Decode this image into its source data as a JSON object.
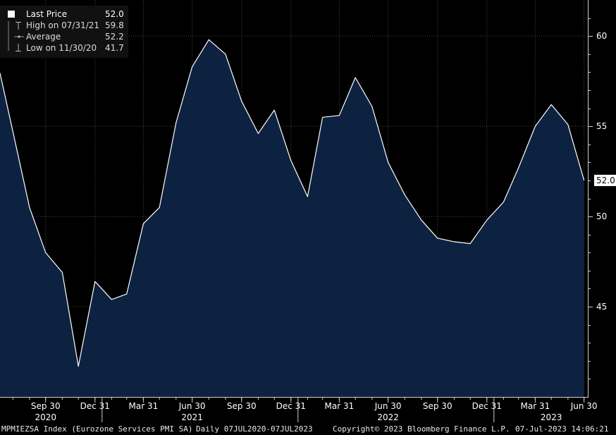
{
  "chart_data": {
    "type": "area",
    "title": "",
    "xlabel": "",
    "ylabel": "",
    "ylim": [
      40.0,
      62.0
    ],
    "y_ticks": [
      45,
      50,
      55,
      60
    ],
    "x": [
      "2020-07-31",
      "2020-08-31",
      "2020-09-30",
      "2020-10-31",
      "2020-11-30",
      "2020-12-31",
      "2021-01-31",
      "2021-02-28",
      "2021-03-31",
      "2021-04-30",
      "2021-05-31",
      "2021-06-30",
      "2021-07-31",
      "2021-08-31",
      "2021-09-30",
      "2021-10-31",
      "2021-11-30",
      "2021-12-31",
      "2022-01-31",
      "2022-02-28",
      "2022-03-31",
      "2022-04-30",
      "2022-05-31",
      "2022-06-30",
      "2022-07-31",
      "2022-08-31",
      "2022-09-30",
      "2022-10-31",
      "2022-11-30",
      "2022-12-31",
      "2023-01-31",
      "2023-02-28",
      "2023-03-31",
      "2023-04-30",
      "2023-05-31",
      "2023-06-30"
    ],
    "x_start": "2020-07-07",
    "x_end": "2023-07-07",
    "series": [
      {
        "name": "Last Price",
        "values": [
          54.7,
          50.5,
          48.0,
          46.9,
          41.7,
          46.4,
          45.4,
          45.7,
          49.6,
          50.5,
          55.2,
          58.3,
          59.8,
          59.0,
          56.4,
          54.6,
          55.9,
          53.1,
          51.1,
          55.5,
          55.6,
          57.7,
          56.1,
          53.0,
          51.2,
          49.8,
          48.8,
          48.6,
          48.5,
          49.8,
          50.8,
          52.7,
          55.0,
          56.2,
          55.1,
          52.0
        ],
        "color": "#ffffff",
        "fill": "#0d2240"
      }
    ],
    "x_tick_labels": [
      "Sep 30",
      "Dec 31",
      "Mar 31",
      "Jun 30",
      "Sep 30",
      "Dec 31",
      "Mar 31",
      "Jun 30",
      "Sep 30",
      "Dec 31",
      "Mar 31",
      "Jun 30"
    ],
    "x_tick_dates": [
      "2020-09-30",
      "2020-12-31",
      "2021-03-31",
      "2021-06-30",
      "2021-09-30",
      "2021-12-31",
      "2022-03-31",
      "2022-06-30",
      "2022-09-30",
      "2022-12-31",
      "2023-03-31",
      "2023-06-30"
    ],
    "x_year_labels": [
      "2020",
      "2021",
      "2022",
      "2023"
    ],
    "x_year_dates": [
      "2020-09-30",
      "2021-06-30",
      "2022-06-30",
      "2023-04-30"
    ],
    "last_value_label": "52.0",
    "legend": [
      {
        "label": "Last Price",
        "value": "52.0",
        "icon": "filled-square-icon"
      },
      {
        "label": "High on 07/31/21",
        "value": "59.8",
        "icon": "high-marker-icon"
      },
      {
        "label": "Average",
        "value": "52.2",
        "icon": "average-marker-icon"
      },
      {
        "label": "Low on 11/30/20",
        "value": "41.7",
        "icon": "low-marker-icon"
      }
    ],
    "legend_placement": "top-left",
    "grid": true
  },
  "footer": {
    "ticker": "MPMIEZSA Index (Eurozone Services PMI SA)",
    "range": "Daily 07JUL2020-07JUL2023",
    "copyright": "Copyright© 2023 Bloomberg Finance L.P.",
    "timestamp": "07-Jul-2023 14:06:21"
  },
  "colors": {
    "background": "#000000",
    "area_fill": "#0d2240",
    "line": "#ffffff",
    "grid": "#4a4a4a"
  }
}
